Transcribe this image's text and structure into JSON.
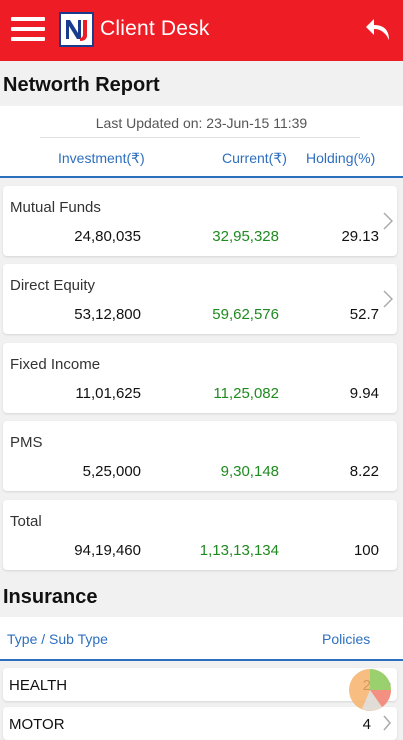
{
  "appbar": {
    "title": "Client Desk",
    "menu_icon": "hamburger-menu-icon",
    "back_icon": "back-arrow-icon",
    "bg_color": "#ee1c24"
  },
  "networth": {
    "title": "Networth Report",
    "last_updated": "Last Updated on: 23-Jun-15  11:39",
    "columns": {
      "investment": "Investment(₹)",
      "current": "Current(₹)",
      "holding": "Holding(%)"
    },
    "rows": [
      {
        "label": "Mutual Funds",
        "investment": "24,80,035",
        "current": "32,95,328",
        "holding": "29.13",
        "chevron": true
      },
      {
        "label": "Direct Equity",
        "investment": "53,12,800",
        "current": "59,62,576",
        "holding": "52.7",
        "chevron": true
      },
      {
        "label": "Fixed Income",
        "investment": "11,01,625",
        "current": "11,25,082",
        "holding": "9.94",
        "chevron": false
      },
      {
        "label": "PMS",
        "investment": "5,25,000",
        "current": "9,30,148",
        "holding": "8.22",
        "chevron": false
      },
      {
        "label": "Total",
        "investment": "94,19,460",
        "current": "1,13,13,134",
        "holding": "100",
        "chevron": false
      }
    ]
  },
  "insurance": {
    "title": "Insurance",
    "columns": {
      "type": "Type / Sub Type",
      "policies": "Policies"
    },
    "rows": [
      {
        "type": "HEALTH",
        "policies": "2"
      },
      {
        "type": "MOTOR",
        "policies": "4"
      }
    ]
  },
  "colors": {
    "accent_blue": "#2d6fbf",
    "current_green": "#1f8a1f"
  }
}
